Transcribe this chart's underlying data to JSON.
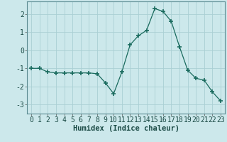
{
  "x": [
    0,
    1,
    2,
    3,
    4,
    5,
    6,
    7,
    8,
    9,
    10,
    11,
    12,
    13,
    14,
    15,
    16,
    17,
    18,
    19,
    20,
    21,
    22,
    23
  ],
  "y": [
    -1.0,
    -1.0,
    -1.2,
    -1.25,
    -1.25,
    -1.25,
    -1.25,
    -1.25,
    -1.3,
    -1.8,
    -2.4,
    -1.2,
    0.3,
    0.8,
    1.1,
    2.3,
    2.15,
    1.6,
    0.2,
    -1.1,
    -1.55,
    -1.65,
    -2.3,
    -2.8
  ],
  "line_color": "#1a6b5e",
  "marker": "+",
  "marker_size": 4,
  "marker_lw": 1.2,
  "bg_color": "#cce8eb",
  "grid_color": "#aacfd4",
  "xlabel": "Humidex (Indice chaleur)",
  "xlim": [
    -0.5,
    23.5
  ],
  "ylim": [
    -3.5,
    2.7
  ],
  "yticks": [
    -3,
    -2,
    -1,
    0,
    1,
    2
  ],
  "xticks": [
    0,
    1,
    2,
    3,
    4,
    5,
    6,
    7,
    8,
    9,
    10,
    11,
    12,
    13,
    14,
    15,
    16,
    17,
    18,
    19,
    20,
    21,
    22,
    23
  ],
  "xlabel_fontsize": 7.5,
  "tick_fontsize": 7
}
